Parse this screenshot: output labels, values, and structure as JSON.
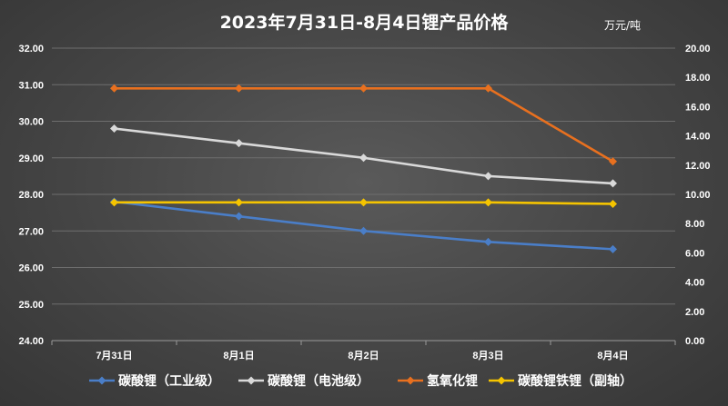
{
  "chart_data": {
    "type": "line",
    "title": "2023年7月31日-8月4日锂产品价格",
    "unit_label": "万元/吨",
    "categories": [
      "7月31日",
      "8月1日",
      "8月2日",
      "8月3日",
      "8月4日"
    ],
    "y_left": {
      "min": 24.0,
      "max": 32.0,
      "step": 1.0,
      "tick_labels": [
        "24.00",
        "25.00",
        "26.00",
        "27.00",
        "28.00",
        "29.00",
        "30.00",
        "31.00",
        "32.00"
      ]
    },
    "y_right": {
      "min": 0.0,
      "max": 20.0,
      "step": 2.0,
      "tick_labels": [
        "0.00",
        "2.00",
        "4.00",
        "6.00",
        "8.00",
        "10.00",
        "12.00",
        "14.00",
        "16.00",
        "18.00",
        "20.00"
      ]
    },
    "grid": true,
    "legend_position": "bottom",
    "series": [
      {
        "name": "碳酸锂（工业级）",
        "axis": "left",
        "color": "#4a7ec8",
        "values": [
          27.8,
          27.4,
          27.0,
          26.7,
          26.5
        ]
      },
      {
        "name": "碳酸锂（电池级）",
        "axis": "left",
        "color": "#d9d9d9",
        "values": [
          29.8,
          29.4,
          29.0,
          28.5,
          28.3
        ]
      },
      {
        "name": "氢氧化锂",
        "axis": "left",
        "color": "#e8701f",
        "values": [
          30.9,
          30.9,
          30.9,
          30.9,
          28.9
        ]
      },
      {
        "name": "碳酸锂铁锂（副轴）",
        "axis": "right",
        "color": "#f5c400",
        "values": [
          9.45,
          9.45,
          9.45,
          9.45,
          9.35
        ]
      }
    ]
  }
}
